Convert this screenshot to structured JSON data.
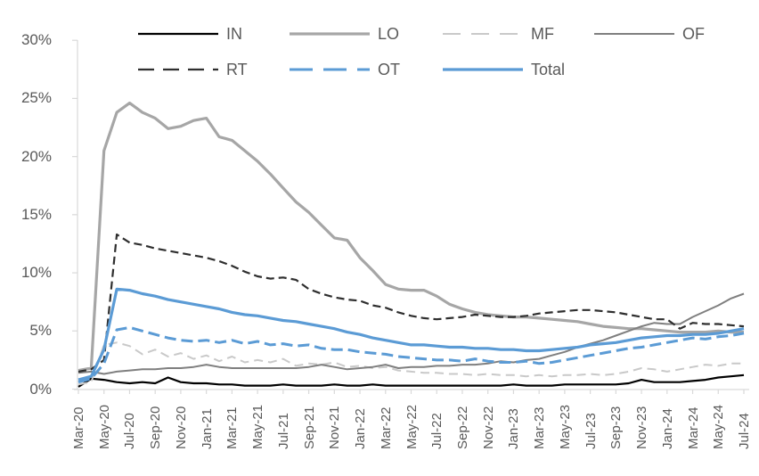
{
  "chart_data": {
    "type": "line",
    "title": "",
    "xlabel": "",
    "ylabel": "",
    "ylim": [
      0,
      30
    ],
    "grid": false,
    "axis_color": "#d9d9d9",
    "tick_label_color": "#595959",
    "y_ticks": [
      {
        "value": 0,
        "label": "0%"
      },
      {
        "value": 5,
        "label": "5%"
      },
      {
        "value": 10,
        "label": "10%"
      },
      {
        "value": 15,
        "label": "15%"
      },
      {
        "value": 20,
        "label": "20%"
      },
      {
        "value": 25,
        "label": "25%"
      },
      {
        "value": 30,
        "label": "30%"
      }
    ],
    "x": [
      "Mar-20",
      "Apr-20",
      "May-20",
      "Jun-20",
      "Jul-20",
      "Aug-20",
      "Sep-20",
      "Oct-20",
      "Nov-20",
      "Dec-20",
      "Jan-21",
      "Feb-21",
      "Mar-21",
      "Apr-21",
      "May-21",
      "Jun-21",
      "Jul-21",
      "Aug-21",
      "Sep-21",
      "Oct-21",
      "Nov-21",
      "Dec-21",
      "Jan-22",
      "Feb-22",
      "Mar-22",
      "Apr-22",
      "May-22",
      "Jun-22",
      "Jul-22",
      "Aug-22",
      "Sep-22",
      "Oct-22",
      "Nov-22",
      "Dec-22",
      "Jan-23",
      "Feb-23",
      "Mar-23",
      "Apr-23",
      "May-23",
      "Jun-23",
      "Jul-23",
      "Aug-23",
      "Sep-23",
      "Oct-23",
      "Nov-23",
      "Dec-23",
      "Jan-24",
      "Feb-24",
      "Mar-24",
      "Apr-24",
      "May-24",
      "Jun-24",
      "Jul-24"
    ],
    "x_tick_every": 2,
    "legend_position": "top",
    "legend_rows": [
      [
        "IN",
        "LO",
        "MF",
        "OF"
      ],
      [
        "RT",
        "OT",
        "Total"
      ]
    ],
    "series": [
      {
        "name": "IN",
        "color": "#000000",
        "width": 2.2,
        "dash": "",
        "values": [
          0.2,
          0.9,
          0.8,
          0.6,
          0.5,
          0.6,
          0.5,
          1.0,
          0.6,
          0.5,
          0.5,
          0.4,
          0.4,
          0.3,
          0.3,
          0.3,
          0.4,
          0.3,
          0.3,
          0.3,
          0.4,
          0.3,
          0.3,
          0.4,
          0.3,
          0.3,
          0.3,
          0.3,
          0.3,
          0.3,
          0.3,
          0.3,
          0.3,
          0.3,
          0.4,
          0.3,
          0.3,
          0.3,
          0.4,
          0.4,
          0.4,
          0.4,
          0.4,
          0.5,
          0.8,
          0.6,
          0.6,
          0.6,
          0.7,
          0.8,
          1.0,
          1.1,
          1.2
        ]
      },
      {
        "name": "LO",
        "color": "#a6a6a6",
        "width": 3.2,
        "dash": "",
        "values": [
          1.6,
          1.8,
          20.5,
          23.8,
          24.6,
          23.8,
          23.3,
          22.4,
          22.6,
          23.1,
          23.3,
          21.7,
          21.4,
          20.5,
          19.6,
          18.5,
          17.3,
          16.1,
          15.2,
          14.1,
          13.0,
          12.8,
          11.3,
          10.2,
          9.0,
          8.6,
          8.5,
          8.5,
          8.0,
          7.3,
          6.9,
          6.6,
          6.4,
          6.3,
          6.2,
          6.2,
          6.1,
          6.0,
          5.9,
          5.8,
          5.6,
          5.4,
          5.3,
          5.2,
          5.2,
          5.1,
          5.0,
          4.9,
          4.9,
          4.9,
          5.0,
          4.9,
          4.9
        ]
      },
      {
        "name": "MF",
        "color": "#c9c9c9",
        "width": 2.0,
        "dash": "10 6",
        "values": [
          0.4,
          0.6,
          3.8,
          4.0,
          3.7,
          3.0,
          3.4,
          2.8,
          3.1,
          2.6,
          2.9,
          2.4,
          2.8,
          2.3,
          2.5,
          2.3,
          2.6,
          2.0,
          2.2,
          2.1,
          2.3,
          1.9,
          2.0,
          1.8,
          1.9,
          1.6,
          1.5,
          1.4,
          1.4,
          1.3,
          1.3,
          1.2,
          1.3,
          1.2,
          1.2,
          1.1,
          1.2,
          1.1,
          1.2,
          1.2,
          1.3,
          1.2,
          1.3,
          1.5,
          1.8,
          1.7,
          1.5,
          1.7,
          1.9,
          2.1,
          2.0,
          2.2,
          2.2
        ]
      },
      {
        "name": "OF",
        "color": "#7f7f7f",
        "width": 2.0,
        "dash": "",
        "values": [
          1.4,
          1.5,
          1.3,
          1.5,
          1.6,
          1.7,
          1.7,
          1.8,
          1.8,
          1.9,
          2.1,
          1.9,
          1.8,
          1.8,
          1.8,
          1.8,
          1.8,
          1.8,
          1.9,
          2.1,
          1.9,
          1.7,
          1.8,
          1.9,
          2.1,
          1.8,
          1.9,
          1.9,
          2.0,
          2.0,
          2.1,
          2.1,
          2.2,
          2.4,
          2.3,
          2.5,
          2.6,
          2.9,
          3.2,
          3.6,
          3.9,
          4.2,
          4.6,
          5.0,
          5.4,
          5.7,
          5.6,
          5.6,
          6.2,
          6.7,
          7.2,
          7.8,
          8.2
        ]
      },
      {
        "name": "RT",
        "color": "#2e2e2e",
        "width": 2.2,
        "dash": "9 5",
        "values": [
          1.5,
          1.7,
          2.5,
          13.3,
          12.6,
          12.4,
          12.1,
          11.9,
          11.7,
          11.5,
          11.3,
          11.0,
          10.6,
          10.1,
          9.7,
          9.5,
          9.6,
          9.4,
          8.6,
          8.2,
          7.9,
          7.7,
          7.6,
          7.2,
          7.0,
          6.6,
          6.3,
          6.1,
          6.0,
          6.1,
          6.2,
          6.4,
          6.3,
          6.2,
          6.2,
          6.3,
          6.5,
          6.6,
          6.7,
          6.8,
          6.8,
          6.7,
          6.6,
          6.4,
          6.2,
          6.0,
          6.0,
          5.2,
          5.7,
          5.6,
          5.6,
          5.5,
          5.4
        ]
      },
      {
        "name": "OT",
        "color": "#5b9bd5",
        "width": 3.0,
        "dash": "13 6",
        "values": [
          0.6,
          0.9,
          2.2,
          5.1,
          5.3,
          5.0,
          4.7,
          4.4,
          4.2,
          4.1,
          4.2,
          4.0,
          4.2,
          3.9,
          4.1,
          3.8,
          3.9,
          3.7,
          3.8,
          3.5,
          3.4,
          3.4,
          3.2,
          3.1,
          3.0,
          2.8,
          2.7,
          2.6,
          2.5,
          2.5,
          2.4,
          2.6,
          2.4,
          2.3,
          2.3,
          2.4,
          2.2,
          2.3,
          2.5,
          2.7,
          2.9,
          3.1,
          3.3,
          3.5,
          3.6,
          3.8,
          4.0,
          4.2,
          4.4,
          4.3,
          4.5,
          4.6,
          4.8
        ]
      },
      {
        "name": "Total",
        "color": "#5b9bd5",
        "width": 3.2,
        "dash": "",
        "values": [
          0.8,
          1.1,
          3.4,
          8.6,
          8.5,
          8.2,
          8.0,
          7.7,
          7.5,
          7.3,
          7.1,
          6.9,
          6.6,
          6.4,
          6.3,
          6.1,
          5.9,
          5.8,
          5.6,
          5.4,
          5.2,
          4.9,
          4.7,
          4.4,
          4.2,
          4.0,
          3.8,
          3.8,
          3.7,
          3.6,
          3.6,
          3.5,
          3.5,
          3.4,
          3.4,
          3.3,
          3.3,
          3.4,
          3.5,
          3.6,
          3.8,
          3.9,
          4.0,
          4.2,
          4.4,
          4.5,
          4.6,
          4.6,
          4.7,
          4.7,
          4.8,
          5.0,
          5.2
        ]
      }
    ]
  }
}
